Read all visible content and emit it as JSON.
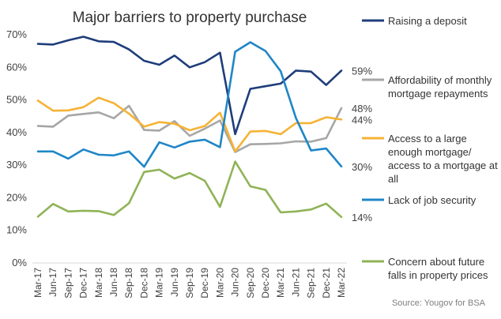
{
  "chart_data": {
    "type": "line",
    "title": "Major barriers to property purchase",
    "source": "Source: Yougov for BSA",
    "ylim": [
      0,
      70
    ],
    "yticks": [
      0,
      10,
      20,
      30,
      40,
      50,
      60,
      70
    ],
    "ytick_labels": [
      "0%",
      "10%",
      "20%",
      "30%",
      "40%",
      "50%",
      "60%",
      "70%"
    ],
    "grid": false,
    "legend_position": "right",
    "x": [
      "Mar-17",
      "Jun-17",
      "Sep-17",
      "Dec-17",
      "Mar-18",
      "Jun-18",
      "Sep-18",
      "Dec-18",
      "Mar-19",
      "Jun-19",
      "Sep-19",
      "Dec-19",
      "Mar-20",
      "Jun-20",
      "Sep-20",
      "Dec-20",
      "Mar-21",
      "Jun-21",
      "Sep-21",
      "Dec-21",
      "Mar-22"
    ],
    "series": [
      {
        "name": "Raising a deposit",
        "color": "#1f3d7a",
        "end_label": "59%",
        "values": [
          67.2,
          67.0,
          68.3,
          69.4,
          68.0,
          67.8,
          65.5,
          62.0,
          60.8,
          63.6,
          60.0,
          61.6,
          64.5,
          39.5,
          53.4,
          54.2,
          55.0,
          59.0,
          58.7,
          54.6,
          59.0
        ]
      },
      {
        "name": "Affordability of monthly mortgage repayments",
        "legend_lines": [
          "Affordability of monthly",
          "mortgage repayments"
        ],
        "color": "#a6a6a6",
        "end_label": "48%",
        "values": [
          42.0,
          41.8,
          45.2,
          45.7,
          46.2,
          44.4,
          48.2,
          40.8,
          40.6,
          43.5,
          39.0,
          41.2,
          43.7,
          34.0,
          36.4,
          36.5,
          36.7,
          37.3,
          37.2,
          38.3,
          47.5
        ]
      },
      {
        "name": "Access to a large enough mortgage/ access to a mortgage at all",
        "legend_lines": [
          "Access to a large",
          "enough mortgage/",
          "access to a mortgage at",
          "all"
        ],
        "color": "#f5b335",
        "end_label": "44%",
        "values": [
          49.8,
          46.7,
          46.8,
          47.8,
          50.7,
          49.0,
          45.8,
          41.8,
          43.2,
          42.7,
          40.7,
          42.0,
          46.1,
          34.2,
          40.3,
          40.5,
          39.5,
          42.9,
          42.9,
          44.7,
          44.0
        ]
      },
      {
        "name": "Lack of job security",
        "color": "#1f86c7",
        "end_label": "30%",
        "values": [
          34.2,
          34.2,
          32.0,
          34.8,
          33.2,
          33.0,
          34.2,
          29.5,
          37.0,
          35.4,
          37.2,
          37.8,
          35.5,
          64.8,
          67.7,
          65.0,
          58.8,
          44.5,
          34.5,
          35.1,
          29.6
        ]
      },
      {
        "name": "Concern about future falls in property prices",
        "legend_lines": [
          "Concern about future",
          "falls in property prices"
        ],
        "color": "#8fb356",
        "end_label": "14%",
        "values": [
          14.2,
          18.1,
          15.8,
          16.0,
          15.9,
          14.7,
          18.3,
          27.9,
          28.6,
          25.9,
          27.6,
          25.2,
          17.2,
          31.1,
          23.5,
          22.4,
          15.5,
          15.8,
          16.4,
          18.2,
          14.1
        ]
      }
    ]
  }
}
